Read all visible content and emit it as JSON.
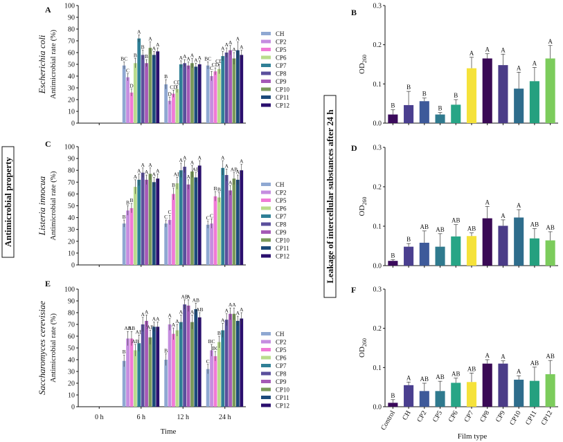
{
  "figure": {
    "antimicrobial_label": "Antimicrobial property",
    "leakage_label": "Leakage of intercellular substances after 24 h",
    "left_x_label": "Time",
    "right_x_label": "Film type"
  },
  "colors": {
    "CH": "#8fa8d2",
    "CP2": "#c58de0",
    "CP5": "#f07ad6",
    "CP6": "#b9dc8c",
    "CP7": "#2f7f96",
    "CP8": "#5a4f9c",
    "CP9": "#a55ab6",
    "CP10": "#7a9a5a",
    "CP11": "#1c4a7a",
    "CP12": "#2a0f6e",
    "Control": "#3b0a5c",
    "R_CH": "#4a3f8f",
    "R_CP2": "#3e5a9a",
    "R_CP5": "#2f7a8e",
    "R_CP6": "#27a586",
    "R_CP7": "#f5e23a",
    "R_CP8": "#3a0a55",
    "R_CP9": "#4b3c88",
    "R_CP10": "#2e6d8c",
    "R_CP11": "#25a07f",
    "R_CP12": "#7ccc5c"
  },
  "chart_data": [
    {
      "id": "A",
      "type": "bar",
      "panel_label": "A",
      "species": "Escherichia coli",
      "ylabel": "Antimicrobial rate (%)",
      "xlabel": "Time",
      "ylim": [
        0,
        100
      ],
      "yticks": [
        "0",
        "10",
        "20",
        "30",
        "40",
        "50",
        "60",
        "70",
        "80",
        "90",
        "100"
      ],
      "categories": [
        "0 h",
        "6 h",
        "12 h",
        "24 h"
      ],
      "legend": [
        "CH",
        "CP2",
        "CP5",
        "CP6",
        "CP7",
        "CP8",
        "CP9",
        "CP10",
        "CP11",
        "CP12"
      ],
      "series": [
        {
          "name": "CH",
          "values": [
            0,
            49,
            33,
            49
          ],
          "errors": [
            0,
            3,
            4,
            3
          ],
          "sig": [
            "",
            "BC",
            "B",
            "BC"
          ]
        },
        {
          "name": "CP2",
          "values": [
            0,
            39,
            19,
            40
          ],
          "errors": [
            0,
            3,
            3,
            4
          ],
          "sig": [
            "",
            "C",
            "D",
            "C"
          ]
        },
        {
          "name": "CP5",
          "values": [
            0,
            26,
            25,
            44
          ],
          "errors": [
            0,
            3,
            3,
            3
          ],
          "sig": [
            "",
            "D",
            "CD",
            "CD"
          ]
        },
        {
          "name": "CP6",
          "values": [
            0,
            51,
            29,
            46
          ],
          "errors": [
            0,
            4,
            3,
            4
          ],
          "sig": [
            "",
            "B",
            "CD",
            "CD"
          ]
        },
        {
          "name": "CP7",
          "values": [
            0,
            72,
            50,
            57
          ],
          "errors": [
            0,
            3,
            3,
            4
          ],
          "sig": [
            "",
            "A",
            "A",
            "A"
          ]
        },
        {
          "name": "CP8",
          "values": [
            0,
            58,
            51,
            60
          ],
          "errors": [
            0,
            4,
            3,
            4
          ],
          "sig": [
            "",
            "B",
            "A",
            "A"
          ]
        },
        {
          "name": "CP9",
          "values": [
            0,
            51,
            49,
            62
          ],
          "errors": [
            0,
            3,
            3,
            4
          ],
          "sig": [
            "",
            "B",
            "A",
            "A"
          ]
        },
        {
          "name": "CP10",
          "values": [
            0,
            64,
            51,
            55
          ],
          "errors": [
            0,
            5,
            4,
            5
          ],
          "sig": [
            "",
            "A",
            "A",
            "A"
          ]
        },
        {
          "name": "CP11",
          "values": [
            0,
            58,
            48,
            62
          ],
          "errors": [
            0,
            3,
            3,
            7
          ],
          "sig": [
            "",
            "A",
            "A",
            "A"
          ]
        },
        {
          "name": "CP12",
          "values": [
            0,
            61,
            50,
            58
          ],
          "errors": [
            0,
            3,
            3,
            4
          ],
          "sig": [
            "",
            "A",
            "A",
            "A"
          ]
        }
      ]
    },
    {
      "id": "C",
      "type": "bar",
      "panel_label": "C",
      "species": "Listeria innocua",
      "ylabel": "Antimicrobial rate (%)",
      "xlabel": "Time",
      "ylim": [
        0,
        100
      ],
      "yticks": [
        "0",
        "10",
        "20",
        "30",
        "40",
        "50",
        "60",
        "70",
        "80",
        "90",
        "100"
      ],
      "categories": [
        "0 h",
        "6 h",
        "12 h",
        "24 h"
      ],
      "legend": [
        "CH",
        "CP2",
        "CP5",
        "CP6",
        "CP7",
        "CP8",
        "CP9",
        "CP10",
        "CP11",
        "CP12"
      ],
      "series": [
        {
          "name": "CH",
          "values": [
            0,
            35,
            35,
            34
          ],
          "errors": [
            0,
            3,
            3,
            3
          ],
          "sig": [
            "",
            "B",
            "C",
            "C"
          ]
        },
        {
          "name": "CP2",
          "values": [
            0,
            46,
            38,
            35
          ],
          "errors": [
            0,
            4,
            4,
            4
          ],
          "sig": [
            "",
            "B",
            "C",
            "C"
          ]
        },
        {
          "name": "CP5",
          "values": [
            0,
            48,
            60,
            58
          ],
          "errors": [
            0,
            4,
            5,
            4
          ],
          "sig": [
            "",
            "B",
            "B",
            "B"
          ]
        },
        {
          "name": "CP6",
          "values": [
            0,
            66,
            69,
            57
          ],
          "errors": [
            0,
            6,
            5,
            4
          ],
          "sig": [
            "",
            "A",
            "AB",
            "B"
          ]
        },
        {
          "name": "CP7",
          "values": [
            0,
            72,
            80,
            82
          ],
          "errors": [
            0,
            5,
            6,
            6
          ],
          "sig": [
            "",
            "A",
            "A",
            "A"
          ]
        },
        {
          "name": "CP8",
          "values": [
            0,
            78,
            83,
            76
          ],
          "errors": [
            0,
            4,
            5,
            5
          ],
          "sig": [
            "",
            "A",
            "A",
            "A"
          ]
        },
        {
          "name": "CP9",
          "values": [
            0,
            72,
            68,
            63
          ],
          "errors": [
            0,
            4,
            4,
            4
          ],
          "sig": [
            "",
            "A",
            "A",
            "A"
          ]
        },
        {
          "name": "CP10",
          "values": [
            0,
            77,
            79,
            73
          ],
          "errors": [
            0,
            5,
            5,
            5
          ],
          "sig": [
            "",
            "A",
            "A",
            "AB"
          ]
        },
        {
          "name": "CP11",
          "values": [
            0,
            70,
            74,
            72
          ],
          "errors": [
            0,
            4,
            4,
            4
          ],
          "sig": [
            "",
            "A",
            "AB",
            "A"
          ]
        },
        {
          "name": "CP12",
          "values": [
            0,
            73,
            84,
            80
          ],
          "errors": [
            0,
            4,
            4,
            5
          ],
          "sig": [
            "",
            "A",
            "A",
            "A"
          ]
        }
      ]
    },
    {
      "id": "E",
      "type": "bar",
      "panel_label": "E",
      "species": "Saccharomyces cerevisiae",
      "ylabel": "Antimicrobial rate (%)",
      "xlabel": "Time",
      "ylim": [
        0,
        100
      ],
      "yticks": [
        "0",
        "10",
        "20",
        "30",
        "40",
        "50",
        "60",
        "70",
        "80",
        "90",
        "100"
      ],
      "categories": [
        "0 h",
        "6 h",
        "12 h",
        "24 h"
      ],
      "legend": [
        "CH",
        "CP2",
        "CP5",
        "CP6",
        "CP7",
        "CP8",
        "CP9",
        "CP10",
        "CP11",
        "CP12"
      ],
      "series": [
        {
          "name": "CH",
          "values": [
            0,
            39,
            40,
            32
          ],
          "errors": [
            0,
            5,
            5,
            4
          ],
          "sig": [
            "",
            "B",
            "B",
            "C"
          ]
        },
        {
          "name": "CP2",
          "values": [
            0,
            58,
            70,
            48
          ],
          "errors": [
            0,
            6,
            5,
            5
          ],
          "sig": [
            "",
            "AB",
            "A",
            "BC"
          ]
        },
        {
          "name": "CP5",
          "values": [
            0,
            58,
            62,
            43
          ],
          "errors": [
            0,
            6,
            5,
            4
          ],
          "sig": [
            "",
            "AB",
            "A",
            "BC"
          ]
        },
        {
          "name": "CP6",
          "values": [
            0,
            48,
            65,
            55
          ],
          "errors": [
            0,
            5,
            5,
            5
          ],
          "sig": [
            "",
            "AB",
            "A",
            "B"
          ]
        },
        {
          "name": "CP7",
          "values": [
            0,
            54,
            72,
            65
          ],
          "errors": [
            0,
            7,
            6,
            6
          ],
          "sig": [
            "",
            "AB",
            "A",
            "A"
          ]
        },
        {
          "name": "CP8",
          "values": [
            0,
            70,
            87,
            74
          ],
          "errors": [
            0,
            6,
            4,
            5
          ],
          "sig": [
            "",
            "A",
            "AB",
            "A"
          ]
        },
        {
          "name": "CP9",
          "values": [
            0,
            73,
            86,
            79
          ],
          "errors": [
            0,
            5,
            5,
            5
          ],
          "sig": [
            "",
            "A",
            "A",
            "A"
          ]
        },
        {
          "name": "CP10",
          "values": [
            0,
            59,
            72,
            79
          ],
          "errors": [
            0,
            6,
            6,
            5
          ],
          "sig": [
            "",
            "AB",
            "A",
            "A"
          ]
        },
        {
          "name": "CP11",
          "values": [
            0,
            68,
            83,
            73
          ],
          "errors": [
            0,
            4,
            5,
            4
          ],
          "sig": [
            "",
            "A",
            "AB",
            "A"
          ]
        },
        {
          "name": "CP12",
          "values": [
            0,
            68,
            76,
            75
          ],
          "errors": [
            0,
            4,
            4,
            5
          ],
          "sig": [
            "",
            "A",
            "AB",
            "A"
          ]
        }
      ]
    },
    {
      "id": "B",
      "type": "bar",
      "panel_label": "B",
      "ylabel": "OD260",
      "ylim": [
        0,
        0.3
      ],
      "yticks": [
        "0.0",
        "0.1",
        "0.2",
        "0.3"
      ],
      "categories": [
        "Control",
        "CH",
        "CP2",
        "CP5",
        "CP6",
        "CP7",
        "CP8",
        "CP9",
        "CP10",
        "CP11",
        "CP12"
      ],
      "values": [
        0.022,
        0.046,
        0.056,
        0.022,
        0.047,
        0.14,
        0.165,
        0.148,
        0.088,
        0.107,
        0.165
      ],
      "errors": [
        0.012,
        0.035,
        0.008,
        0.005,
        0.013,
        0.028,
        0.012,
        0.028,
        0.042,
        0.035,
        0.033
      ],
      "sig": [
        "B",
        "B",
        "B",
        "B",
        "B",
        "A",
        "A",
        "A",
        "A",
        "A",
        "A"
      ]
    },
    {
      "id": "D",
      "type": "bar",
      "panel_label": "D",
      "ylabel": "OD260",
      "ylim": [
        0,
        0.3
      ],
      "yticks": [
        "0.0",
        "0.1",
        "0.2",
        "0.3"
      ],
      "categories": [
        "Control",
        "CH",
        "CP2",
        "CP5",
        "CP6",
        "CP7",
        "CP8",
        "CP9",
        "CP10",
        "CP11",
        "CP12"
      ],
      "values": [
        0.012,
        0.048,
        0.058,
        0.048,
        0.074,
        0.075,
        0.12,
        0.101,
        0.122,
        0.069,
        0.064
      ],
      "errors": [
        0.003,
        0.008,
        0.03,
        0.033,
        0.03,
        0.008,
        0.03,
        0.015,
        0.02,
        0.025,
        0.022
      ],
      "sig": [
        "B",
        "B",
        "AB",
        "AB",
        "AB",
        "AB",
        "A",
        "A",
        "A",
        "AB",
        "AB"
      ]
    },
    {
      "id": "F",
      "type": "bar",
      "panel_label": "F",
      "ylabel": "OD260",
      "ylim": [
        0,
        0.3
      ],
      "yticks": [
        "0.0",
        "0.1",
        "0.2",
        "0.3"
      ],
      "categories": [
        "Control",
        "CH",
        "CP2",
        "CP5",
        "CP6",
        "CP7",
        "CP8",
        "CP9",
        "CP10",
        "CP11",
        "CP12"
      ],
      "values": [
        0.01,
        0.055,
        0.04,
        0.04,
        0.061,
        0.063,
        0.11,
        0.11,
        0.069,
        0.066,
        0.083
      ],
      "errors": [
        0.008,
        0.008,
        0.02,
        0.025,
        0.012,
        0.023,
        0.01,
        0.007,
        0.01,
        0.035,
        0.035
      ],
      "sig": [
        "B",
        "A",
        "AB",
        "AB",
        "AB",
        "AB",
        "A",
        "A",
        "A",
        "AB",
        "AB"
      ]
    }
  ]
}
